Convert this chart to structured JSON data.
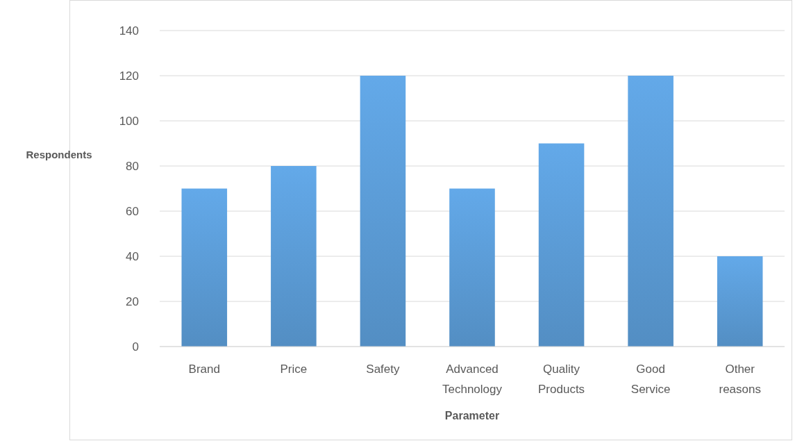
{
  "chart_data": {
    "type": "bar",
    "xlabel": "Parameter",
    "ylabel": "Respondents",
    "categories": [
      "Brand",
      "Price",
      "Safety",
      "Advanced Technology",
      "Quality Products",
      "Good Service",
      "Other reasons"
    ],
    "values": [
      70,
      80,
      120,
      70,
      90,
      120,
      40
    ],
    "color": "#5b9bd5",
    "ylim": [
      0,
      140
    ],
    "yticks": [
      0,
      20,
      40,
      60,
      80,
      100,
      120,
      140
    ],
    "grid": "y"
  }
}
